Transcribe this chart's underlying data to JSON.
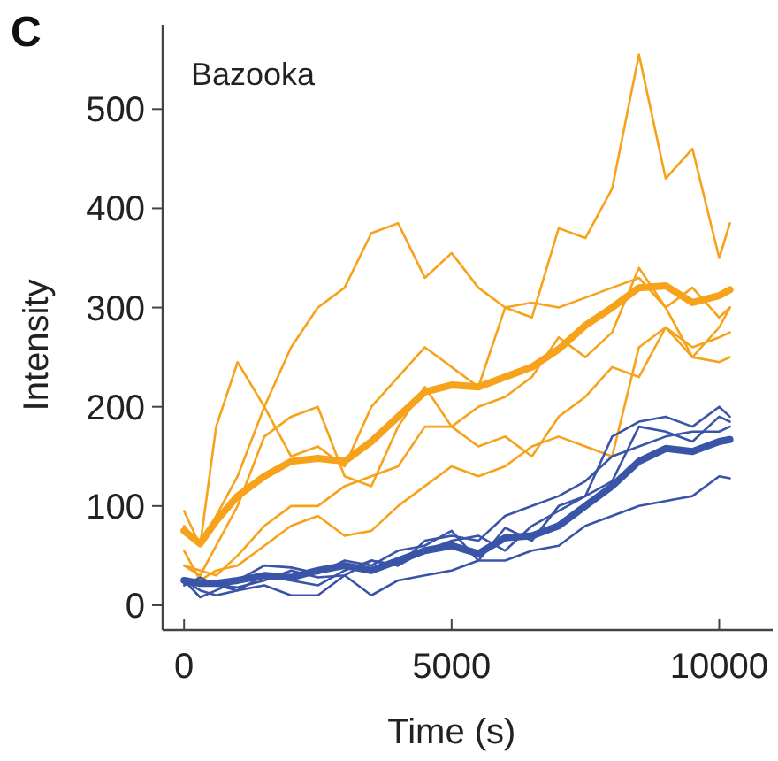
{
  "chart_data": {
    "type": "line",
    "title": "Bazooka",
    "xlabel": "Time (s)",
    "ylabel": "Intensity",
    "annotations": [
      "C"
    ],
    "x": [
      0,
      300,
      600,
      1000,
      1500,
      2000,
      2500,
      3000,
      3500,
      4000,
      4500,
      5000,
      5500,
      6000,
      6500,
      7000,
      7500,
      8000,
      8500,
      9000,
      9500,
      10000,
      10200
    ],
    "xlim": [
      -400,
      11000
    ],
    "ylim": [
      -25,
      585
    ],
    "xticks": [
      0,
      5000,
      10000
    ],
    "yticks": [
      0,
      100,
      200,
      300,
      400,
      500
    ],
    "grid": false,
    "line_style": "solid",
    "marker": "none",
    "series": [
      {
        "color": "#f7a21b",
        "values": [
          80,
          60,
          90,
          130,
          200,
          260,
          300,
          320,
          375,
          385,
          330,
          355,
          320,
          300,
          290,
          380,
          370,
          420,
          555,
          430,
          460,
          350,
          385
        ]
      },
      {
        "color": "#f7a21b",
        "values": [
          95,
          60,
          180,
          245,
          200,
          150,
          160,
          140,
          200,
          230,
          260,
          240,
          220,
          300,
          305,
          300,
          310,
          320,
          330,
          300,
          320,
          290,
          300
        ]
      },
      {
        "color": "#f7a21b",
        "values": [
          40,
          30,
          60,
          100,
          170,
          190,
          200,
          130,
          120,
          180,
          220,
          180,
          200,
          210,
          230,
          270,
          250,
          275,
          340,
          300,
          250,
          245,
          250
        ]
      },
      {
        "color": "#f7a21b",
        "values": [
          40,
          35,
          30,
          50,
          80,
          100,
          100,
          120,
          130,
          140,
          180,
          180,
          160,
          170,
          150,
          190,
          210,
          240,
          230,
          280,
          260,
          270,
          275
        ]
      },
      {
        "color": "#f7a21b",
        "values": [
          55,
          25,
          35,
          40,
          60,
          80,
          90,
          70,
          75,
          100,
          120,
          140,
          130,
          140,
          160,
          170,
          160,
          150,
          260,
          280,
          250,
          280,
          300
        ]
      },
      {
        "color": "#3a55a8",
        "values": [
          25,
          8,
          15,
          25,
          40,
          38,
          32,
          45,
          40,
          55,
          60,
          75,
          45,
          78,
          65,
          100,
          110,
          170,
          185,
          190,
          180,
          200,
          190
        ]
      },
      {
        "color": "#3a55a8",
        "values": [
          20,
          28,
          20,
          18,
          25,
          35,
          28,
          30,
          45,
          40,
          65,
          70,
          65,
          90,
          100,
          110,
          125,
          150,
          160,
          170,
          175,
          175,
          180
        ]
      },
      {
        "color": "#3a55a8",
        "values": [
          22,
          25,
          20,
          15,
          30,
          25,
          20,
          35,
          45,
          40,
          55,
          65,
          70,
          55,
          80,
          95,
          110,
          125,
          180,
          175,
          165,
          190,
          185
        ]
      },
      {
        "color": "#3a55a8",
        "values": [
          25,
          15,
          10,
          15,
          20,
          10,
          10,
          30,
          10,
          25,
          30,
          35,
          45,
          45,
          55,
          60,
          80,
          90,
          100,
          105,
          110,
          130,
          128
        ]
      },
      {
        "color": "#f7a21b",
        "values": [
          75,
          62,
          85,
          110,
          130,
          145,
          148,
          145,
          165,
          190,
          215,
          222,
          220,
          230,
          240,
          258,
          282,
          300,
          320,
          322,
          305,
          312,
          318
        ]
      },
      {
        "color": "#3a55a8",
        "values": [
          25,
          22,
          22,
          25,
          30,
          28,
          35,
          40,
          35,
          45,
          55,
          60,
          52,
          68,
          70,
          80,
          100,
          120,
          145,
          158,
          155,
          165,
          167
        ]
      }
    ]
  }
}
